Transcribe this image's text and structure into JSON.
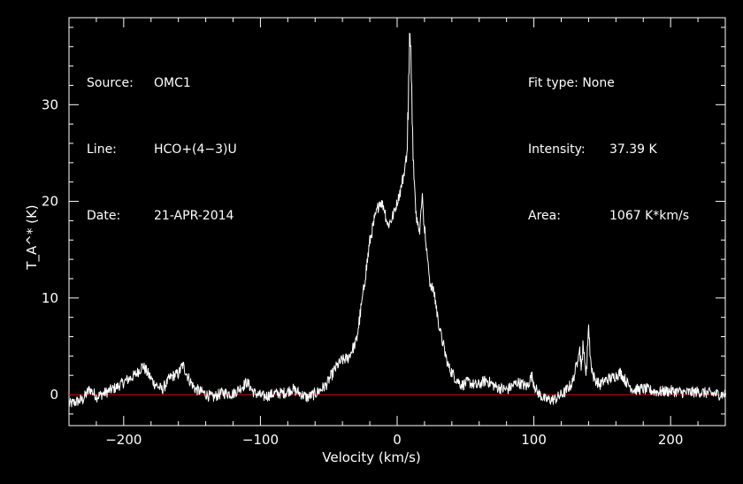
{
  "info": {
    "source_key": "Source:",
    "source_val": "OMC1",
    "line_key": "Line:",
    "line_val": "HCO+(4−3)U",
    "date_key": "Date:",
    "date_val": "21-APR-2014",
    "fit_key": "Fit type:",
    "fit_val": "None",
    "intensity_key": "Intensity:",
    "intensity_val": "37.39 K",
    "area_key": "Area:",
    "area_val": "1067 K*km/s"
  },
  "colors": {
    "background": "#000000",
    "spectrum": "#ffffff",
    "baseline": "#e00000",
    "axes": "#ffffff"
  },
  "chart_data": {
    "type": "line",
    "xlabel": "Velocity (km/s)",
    "ylabel": "T_A^* (K)",
    "xlim": [
      -240,
      240
    ],
    "ylim": [
      -3.2,
      39
    ],
    "xticks": [
      -200,
      -100,
      0,
      100,
      200
    ],
    "xtick_labels": [
      "−200",
      "−100",
      "0",
      "100",
      "200"
    ],
    "yticks": [
      0,
      10,
      20,
      30
    ],
    "ytick_labels": [
      "0",
      "10",
      "20",
      "30"
    ],
    "baseline": 0,
    "series": [
      {
        "x": [
          -240,
          -230,
          -225,
          -220,
          -212,
          -205,
          -198,
          -192,
          -186,
          -183,
          -178,
          -172,
          -166,
          -160,
          -157,
          -152,
          -148,
          -142,
          -135,
          -128,
          -120,
          -113,
          -110,
          -105,
          -98,
          -90,
          -82,
          -77,
          -72,
          -66,
          -60,
          -52,
          -45,
          -41,
          -36,
          -30,
          -25,
          -20,
          -16,
          -13,
          -10,
          -7,
          -4,
          -1,
          2,
          5,
          7,
          8,
          9,
          10,
          11,
          12,
          14,
          16,
          18,
          20,
          22,
          24,
          27,
          30,
          33,
          37,
          42,
          47,
          52,
          58,
          65,
          72,
          80,
          88,
          95,
          98,
          102,
          108,
          115,
          122,
          128,
          131,
          133,
          135,
          136,
          137,
          138,
          140,
          141,
          143,
          145,
          148,
          152,
          158,
          163,
          168,
          173,
          180,
          190,
          200,
          210,
          220,
          230,
          240
        ],
        "values": [
          -1,
          -0.5,
          0.6,
          -0.2,
          0.3,
          0.8,
          1.5,
          2.0,
          3.0,
          2.3,
          1.2,
          0.5,
          1.8,
          2.2,
          3.1,
          1.5,
          0.6,
          0.2,
          -0.3,
          0.2,
          0.1,
          0.9,
          1.3,
          0.2,
          -0.2,
          0.1,
          0.2,
          0.6,
          0.2,
          -0.3,
          0.1,
          1.0,
          2.8,
          3.5,
          3.8,
          5.5,
          10.5,
          16,
          18.5,
          20,
          19.5,
          17.5,
          18.2,
          19.5,
          21,
          23,
          25,
          30,
          37.3,
          35,
          28,
          23,
          18.5,
          16.5,
          20.7,
          17,
          14,
          11.5,
          10.5,
          7.5,
          5.5,
          3,
          1.8,
          1.0,
          1.3,
          0.9,
          1.5,
          0.8,
          0.5,
          1.3,
          0.8,
          2.0,
          0.3,
          -0.5,
          -0.5,
          0.2,
          1.2,
          3.0,
          5.0,
          2.5,
          6.0,
          3.0,
          2.0,
          7.5,
          4.0,
          2.0,
          1.5,
          1.0,
          1.5,
          1.8,
          2.3,
          1.2,
          0.5,
          0.6,
          0.3,
          0.4,
          0.2,
          0.3,
          0.1,
          0.0
        ]
      }
    ]
  }
}
